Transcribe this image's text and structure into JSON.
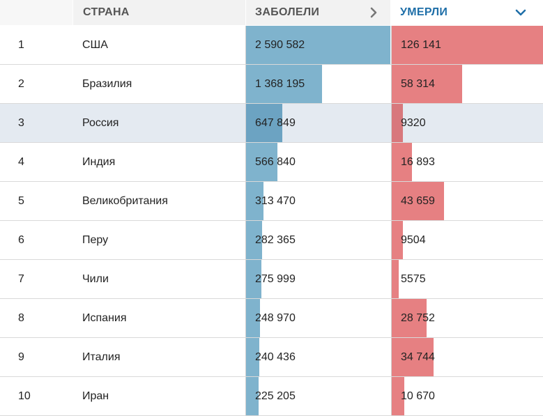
{
  "header": {
    "rank": "",
    "country": "СТРАНА",
    "cases": "ЗАБОЛЕЛИ",
    "deaths": "УМЕРЛИ"
  },
  "colors": {
    "cases_bar": "#7fb3cd",
    "deaths_bar": "#e68082",
    "active_sort": "#1f6fa8",
    "highlight_row": "#e4eaf1"
  },
  "icons": {
    "cases_sort": "chevron-right-icon",
    "deaths_sort": "chevron-down-icon"
  },
  "rows": [
    {
      "rank": "1",
      "country": "США",
      "cases": "2 590 582",
      "deaths": "126 141",
      "cases_n": 2590582,
      "deaths_n": 126141,
      "highlight": false
    },
    {
      "rank": "2",
      "country": "Бразилия",
      "cases": "1 368 195",
      "deaths": "58 314",
      "cases_n": 1368195,
      "deaths_n": 58314,
      "highlight": false
    },
    {
      "rank": "3",
      "country": "Россия",
      "cases": "647 849",
      "deaths": "9320",
      "cases_n": 647849,
      "deaths_n": 9320,
      "highlight": true
    },
    {
      "rank": "4",
      "country": "Индия",
      "cases": "566 840",
      "deaths": "16 893",
      "cases_n": 566840,
      "deaths_n": 16893,
      "highlight": false
    },
    {
      "rank": "5",
      "country": "Великобритания",
      "cases": "313 470",
      "deaths": "43 659",
      "cases_n": 313470,
      "deaths_n": 43659,
      "highlight": false
    },
    {
      "rank": "6",
      "country": "Перу",
      "cases": "282 365",
      "deaths": "9504",
      "cases_n": 282365,
      "deaths_n": 9504,
      "highlight": false
    },
    {
      "rank": "7",
      "country": "Чили",
      "cases": "275 999",
      "deaths": "5575",
      "cases_n": 275999,
      "deaths_n": 5575,
      "highlight": false
    },
    {
      "rank": "8",
      "country": "Испания",
      "cases": "248 970",
      "deaths": "28 752",
      "cases_n": 248970,
      "deaths_n": 28752,
      "highlight": false
    },
    {
      "rank": "9",
      "country": "Италия",
      "cases": "240 436",
      "deaths": "34 744",
      "cases_n": 240436,
      "deaths_n": 34744,
      "highlight": false
    },
    {
      "rank": "10",
      "country": "Иран",
      "cases": "225 205",
      "deaths": "10 670",
      "cases_n": 225205,
      "deaths_n": 10670,
      "highlight": false
    }
  ]
}
